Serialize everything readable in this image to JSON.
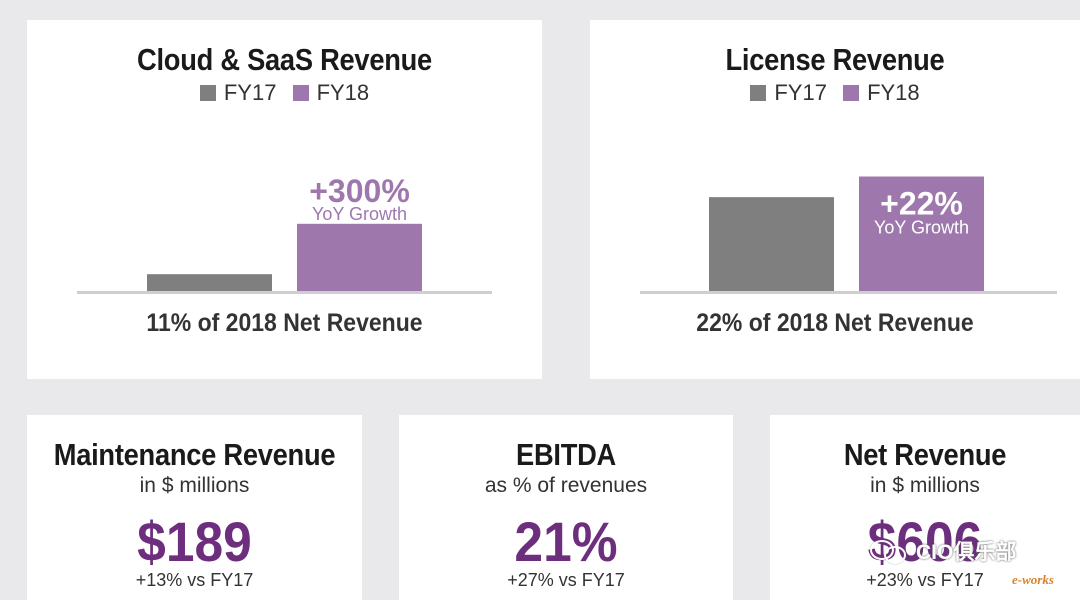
{
  "chart_data": [
    {
      "type": "bar",
      "title": "Cloud & SaaS Revenue",
      "legend": [
        "FY17",
        "FY18"
      ],
      "categories": [
        "FY17",
        "FY18"
      ],
      "values": [
        15,
        60
      ],
      "ylim": [
        0,
        100
      ],
      "bar_colors": [
        "#7f7f7f",
        "#9e78ad"
      ],
      "annotation": {
        "value": "+300%",
        "label": "YoY Growth"
      },
      "footnote": "11% of 2018 Net Revenue"
    },
    {
      "type": "bar",
      "title": "License Revenue",
      "legend": [
        "FY17",
        "FY18"
      ],
      "categories": [
        "FY17",
        "FY18"
      ],
      "values": [
        100,
        122
      ],
      "ylim": [
        0,
        130
      ],
      "bar_colors": [
        "#7f7f7f",
        "#9e78ad"
      ],
      "annotation": {
        "value": "+22%",
        "label": "YoY Growth"
      },
      "footnote": "22% of 2018 Net Revenue"
    }
  ],
  "kpis": {
    "maintenance": {
      "title": "Maintenance Revenue",
      "subtitle": "in $ millions",
      "value": "$189",
      "change": "+13% vs FY17"
    },
    "ebitda": {
      "title": "EBITDA",
      "subtitle": "as % of revenues",
      "value": "21%",
      "change": "+27% vs FY17"
    },
    "net": {
      "title": "Net Revenue",
      "subtitle": "in $ millions",
      "value": "$606",
      "change": "+23% vs FY17"
    }
  },
  "colors": {
    "fy17": "#7f7f7f",
    "fy18": "#9e78ad",
    "accent": "#6d2e7e",
    "axis": "#cfcfcf"
  },
  "watermark": {
    "text": "CIO俱乐部",
    "brand": "e-works",
    "icon": "wechat-icon"
  }
}
